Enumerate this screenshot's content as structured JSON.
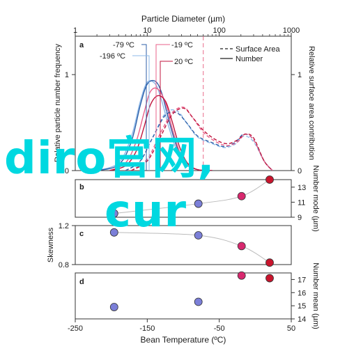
{
  "chart_data": [
    {
      "panel": "a",
      "type": "line",
      "top_axis": {
        "label": "Particle Diameter (µm)",
        "scale": "log",
        "ticks": [
          1,
          10,
          100,
          1000
        ],
        "tick_labels": [
          "1",
          "10",
          "100",
          "1000"
        ]
      },
      "left_axis": {
        "label": "Relative particle number frequency",
        "ylim": [
          0,
          1.4
        ],
        "ticks": [
          0,
          1
        ],
        "tick_labels": [
          "0",
          "1"
        ]
      },
      "right_axis": {
        "label": "Relative surface area contribution",
        "ticks": [
          0,
          1
        ],
        "tick_labels": [
          "0",
          "1"
        ]
      },
      "legend": {
        "position": "top-right",
        "entries": [
          {
            "label": "Surface Area",
            "style": "dashed"
          },
          {
            "label": "Number",
            "style": "solid"
          }
        ]
      },
      "annotations": [
        "-79 ºC",
        "-196 ºC",
        "-19 ºC",
        "20 ºC"
      ],
      "vertical_marker_diameter_um": 60,
      "series": [
        {
          "name": "-196 ºC",
          "kind": "Number",
          "color": "#8db8e8",
          "x": [
            2,
            4,
            6,
            8,
            10,
            13,
            16,
            20,
            26,
            35,
            50,
            80
          ],
          "y": [
            0.0,
            0.08,
            0.35,
            0.72,
            0.92,
            0.9,
            0.72,
            0.45,
            0.2,
            0.06,
            0.01,
            0.0
          ]
        },
        {
          "name": "-79 ºC",
          "kind": "Number",
          "color": "#2c5fa8",
          "x": [
            2,
            4,
            6,
            8,
            10,
            13,
            16,
            20,
            26,
            35,
            50,
            80
          ],
          "y": [
            0.0,
            0.06,
            0.3,
            0.68,
            0.9,
            0.93,
            0.8,
            0.52,
            0.24,
            0.07,
            0.01,
            0.0
          ]
        },
        {
          "name": "-19 ºC",
          "kind": "Number",
          "color": "#e8608a",
          "x": [
            3,
            5,
            7,
            9,
            11,
            14,
            18,
            22,
            28,
            36,
            50,
            80
          ],
          "y": [
            0.0,
            0.08,
            0.3,
            0.6,
            0.82,
            0.85,
            0.7,
            0.45,
            0.2,
            0.06,
            0.01,
            0.0
          ]
        },
        {
          "name": "20 ºC",
          "kind": "Number",
          "color": "#c0143c",
          "x": [
            3,
            5,
            7,
            9,
            11,
            14,
            18,
            22,
            28,
            36,
            50,
            80
          ],
          "y": [
            0.0,
            0.05,
            0.2,
            0.45,
            0.68,
            0.78,
            0.72,
            0.52,
            0.25,
            0.08,
            0.01,
            0.0
          ]
        },
        {
          "name": "-196 ºC",
          "kind": "Surface Area",
          "color": "#8db8e8",
          "x": [
            5,
            8,
            12,
            18,
            26,
            35,
            50,
            80,
            120,
            170,
            220,
            300,
            420,
            550
          ],
          "y": [
            0.0,
            0.1,
            0.35,
            0.6,
            0.62,
            0.5,
            0.35,
            0.28,
            0.24,
            0.28,
            0.36,
            0.3,
            0.1,
            0.0
          ]
        },
        {
          "name": "-79 ºC",
          "kind": "Surface Area",
          "color": "#2c5fa8",
          "x": [
            5,
            8,
            12,
            18,
            26,
            35,
            50,
            80,
            120,
            170,
            220,
            300,
            420,
            550
          ],
          "y": [
            0.0,
            0.1,
            0.35,
            0.58,
            0.6,
            0.5,
            0.36,
            0.29,
            0.25,
            0.3,
            0.38,
            0.32,
            0.1,
            0.0
          ]
        },
        {
          "name": "-19 ºC",
          "kind": "Surface Area",
          "color": "#e8608a",
          "x": [
            6,
            10,
            15,
            22,
            32,
            42,
            60,
            90,
            130,
            180,
            230,
            300,
            420,
            550
          ],
          "y": [
            0.0,
            0.12,
            0.38,
            0.6,
            0.66,
            0.56,
            0.4,
            0.3,
            0.26,
            0.3,
            0.38,
            0.32,
            0.1,
            0.0
          ]
        },
        {
          "name": "20 ºC",
          "kind": "Surface Area",
          "color": "#c0143c",
          "x": [
            6,
            10,
            15,
            22,
            32,
            42,
            60,
            90,
            130,
            180,
            230,
            300,
            420,
            550
          ],
          "y": [
            0.0,
            0.1,
            0.34,
            0.58,
            0.65,
            0.56,
            0.42,
            0.32,
            0.28,
            0.32,
            0.38,
            0.34,
            0.1,
            0.0
          ]
        }
      ]
    },
    {
      "panel": "b",
      "type": "scatter",
      "right_axis": {
        "label": "Number mode (µm)",
        "ylim": [
          9,
          14
        ],
        "ticks": [
          9,
          11,
          13
        ],
        "tick_labels": [
          "9",
          "11",
          "13"
        ]
      },
      "points": [
        {
          "x": -196,
          "y": 9.5,
          "color": "#7b7fd8"
        },
        {
          "x": -79,
          "y": 10.8,
          "color": "#7b7fd8"
        },
        {
          "x": -19,
          "y": 11.8,
          "color": "#d8286e"
        },
        {
          "x": 20,
          "y": 14,
          "color": "#c8142c"
        }
      ]
    },
    {
      "panel": "c",
      "type": "scatter",
      "left_axis": {
        "label": "Skewness",
        "ylim": [
          0.8,
          1.2
        ],
        "ticks": [
          0.8,
          1.2
        ],
        "tick_labels": [
          "0.8",
          "1.2"
        ]
      },
      "points": [
        {
          "x": -196,
          "y": 1.13,
          "color": "#7b7fd8"
        },
        {
          "x": -79,
          "y": 1.1,
          "color": "#7b7fd8"
        },
        {
          "x": -19,
          "y": 0.99,
          "color": "#d8286e"
        },
        {
          "x": 20,
          "y": 0.82,
          "color": "#c8142c"
        }
      ]
    },
    {
      "panel": "d",
      "type": "scatter",
      "right_axis": {
        "label": "Number mean (µm)",
        "ylim": [
          14,
          17.5
        ],
        "ticks": [
          14,
          15,
          16,
          17
        ],
        "tick_labels": [
          "14",
          "15",
          "16",
          "17"
        ]
      },
      "bottom_axis": {
        "label": "Bean Temperature (ºC)",
        "xlim": [
          -250,
          50
        ],
        "ticks": [
          -250,
          -150,
          -50,
          50
        ],
        "tick_labels": [
          "-250",
          "-150",
          "-50",
          "50"
        ]
      },
      "points": [
        {
          "x": -196,
          "y": 14.9,
          "color": "#7b7fd8"
        },
        {
          "x": -79,
          "y": 15.3,
          "color": "#7b7fd8"
        },
        {
          "x": -19,
          "y": 17.3,
          "color": "#d8286e"
        },
        {
          "x": 20,
          "y": 17.1,
          "color": "#c8142c"
        }
      ]
    }
  ],
  "overlay": {
    "line1": "diro官网,",
    "line2": "cur",
    "color": "#00d8e0"
  }
}
